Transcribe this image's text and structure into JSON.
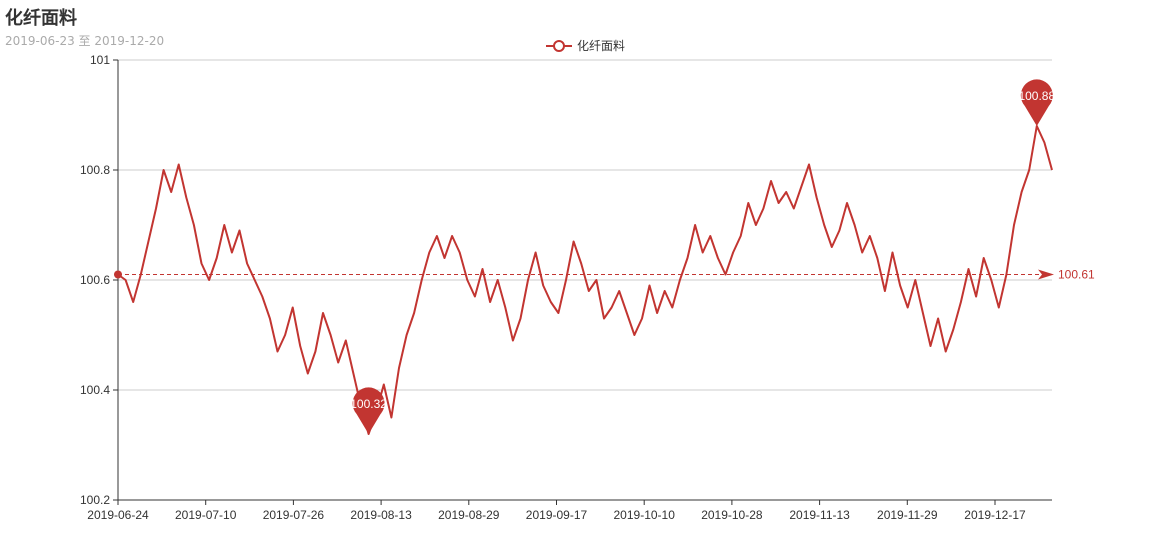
{
  "title": "化纤面料",
  "subtitle": "2019-06-23 至 2019-12-20",
  "legend": {
    "label": "化纤面料"
  },
  "colors": {
    "series": "#c23531",
    "grid": "#cccccc",
    "axis": "#333333"
  },
  "chart_data": {
    "type": "line",
    "title": "化纤面料",
    "subtitle": "2019-06-23 至 2019-12-20",
    "xlabel": "",
    "ylabel": "",
    "ylim": [
      100.2,
      101
    ],
    "yticks": [
      100.2,
      100.4,
      100.6,
      100.8,
      101
    ],
    "grid": true,
    "legend_position": "top-center",
    "x_tick_labels": [
      "2019-06-24",
      "2019-07-10",
      "2019-07-26",
      "2019-08-13",
      "2019-08-29",
      "2019-09-17",
      "2019-10-10",
      "2019-10-28",
      "2019-11-13",
      "2019-11-29",
      "2019-12-17"
    ],
    "series": [
      {
        "name": "化纤面料",
        "values": [
          100.61,
          100.6,
          100.56,
          100.61,
          100.67,
          100.73,
          100.8,
          100.76,
          100.81,
          100.75,
          100.7,
          100.63,
          100.6,
          100.64,
          100.7,
          100.65,
          100.69,
          100.63,
          100.6,
          100.57,
          100.53,
          100.47,
          100.5,
          100.55,
          100.48,
          100.43,
          100.47,
          100.54,
          100.5,
          100.45,
          100.49,
          100.43,
          100.37,
          100.32,
          100.36,
          100.41,
          100.35,
          100.44,
          100.5,
          100.54,
          100.6,
          100.65,
          100.68,
          100.64,
          100.68,
          100.65,
          100.6,
          100.57,
          100.62,
          100.56,
          100.6,
          100.55,
          100.49,
          100.53,
          100.6,
          100.65,
          100.59,
          100.56,
          100.54,
          100.6,
          100.67,
          100.63,
          100.58,
          100.6,
          100.53,
          100.55,
          100.58,
          100.54,
          100.5,
          100.53,
          100.59,
          100.54,
          100.58,
          100.55,
          100.6,
          100.64,
          100.7,
          100.65,
          100.68,
          100.64,
          100.61,
          100.65,
          100.68,
          100.74,
          100.7,
          100.73,
          100.78,
          100.74,
          100.76,
          100.73,
          100.77,
          100.81,
          100.75,
          100.7,
          100.66,
          100.69,
          100.74,
          100.7,
          100.65,
          100.68,
          100.64,
          100.58,
          100.65,
          100.59,
          100.55,
          100.6,
          100.54,
          100.48,
          100.53,
          100.47,
          100.51,
          100.56,
          100.62,
          100.57,
          100.64,
          100.6,
          100.55,
          100.61,
          100.7,
          100.76,
          100.8,
          100.88,
          100.85,
          100.8
        ]
      }
    ],
    "mark_points": [
      {
        "type": "max",
        "label": "100.88",
        "index": 121,
        "value": 100.88
      },
      {
        "type": "min",
        "label": "100.32",
        "index": 33,
        "value": 100.32
      }
    ],
    "mark_line": {
      "type": "average",
      "label": "100.61",
      "value": 100.61
    }
  }
}
